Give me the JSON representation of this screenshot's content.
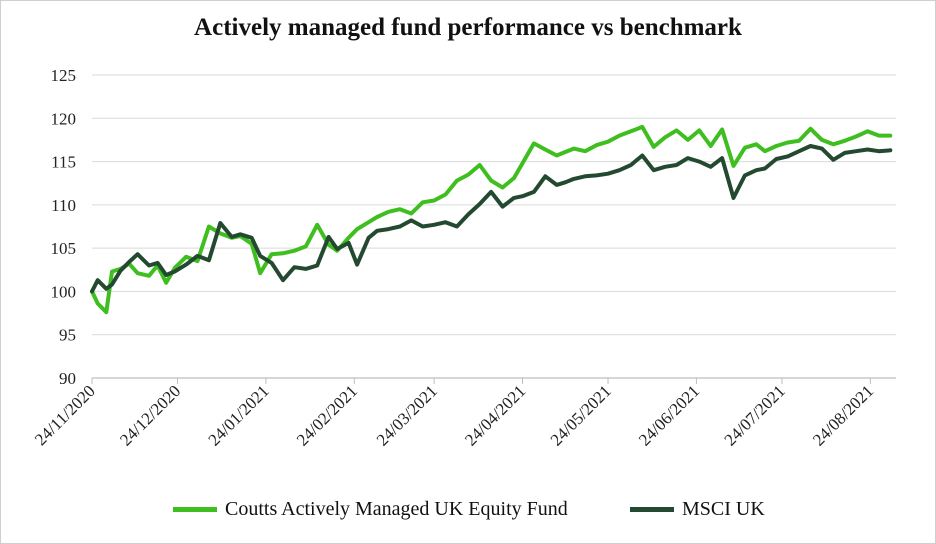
{
  "chart_data": {
    "type": "line",
    "title": "Actively managed fund performance vs benchmark",
    "xlabel": "",
    "ylabel": "",
    "ylim": [
      90,
      125
    ],
    "yticks": [
      "90",
      "95",
      "100",
      "105",
      "110",
      "115",
      "120",
      "125"
    ],
    "xticks": [
      "24/11/2020",
      "24/12/2020",
      "24/01/2021",
      "24/02/2021",
      "24/03/2021",
      "24/04/2021",
      "24/05/2021",
      "24/06/2021",
      "24/07/2021",
      "24/08/2021"
    ],
    "grid": "horizontal",
    "legend_position": "bottom",
    "series": [
      {
        "name": "Coutts Actively Managed UK Equity Fund",
        "color": "#3fbf1f",
        "x": [
          "2020-11-24",
          "2020-11-26",
          "2020-11-29",
          "2020-12-01",
          "2020-12-04",
          "2020-12-07",
          "2020-12-10",
          "2020-12-14",
          "2020-12-17",
          "2020-12-20",
          "2020-12-23",
          "2020-12-27",
          "2020-12-31",
          "2021-01-04",
          "2021-01-08",
          "2021-01-12",
          "2021-01-15",
          "2021-01-19",
          "2021-01-22",
          "2021-01-26",
          "2021-01-30",
          "2021-02-03",
          "2021-02-07",
          "2021-02-11",
          "2021-02-15",
          "2021-02-18",
          "2021-02-22",
          "2021-02-25",
          "2021-03-01",
          "2021-03-04",
          "2021-03-08",
          "2021-03-12",
          "2021-03-16",
          "2021-03-20",
          "2021-03-24",
          "2021-03-28",
          "2021-04-01",
          "2021-04-05",
          "2021-04-09",
          "2021-04-13",
          "2021-04-17",
          "2021-04-21",
          "2021-04-24",
          "2021-04-28",
          "2021-05-02",
          "2021-05-06",
          "2021-05-09",
          "2021-05-12",
          "2021-05-16",
          "2021-05-20",
          "2021-05-24",
          "2021-05-28",
          "2021-06-01",
          "2021-06-05",
          "2021-06-09",
          "2021-06-13",
          "2021-06-17",
          "2021-06-21",
          "2021-06-25",
          "2021-06-29",
          "2021-07-03",
          "2021-07-07",
          "2021-07-11",
          "2021-07-15",
          "2021-07-18",
          "2021-07-22",
          "2021-07-26",
          "2021-07-30",
          "2021-08-03",
          "2021-08-07",
          "2021-08-11",
          "2021-08-15",
          "2021-08-19",
          "2021-08-23",
          "2021-08-27",
          "2021-08-31"
        ],
        "values": [
          100.0,
          98.6,
          97.6,
          102.3,
          102.6,
          103.2,
          102.1,
          101.8,
          103.0,
          101.0,
          102.7,
          104.0,
          103.5,
          107.5,
          106.7,
          106.2,
          106.4,
          105.5,
          102.1,
          104.3,
          104.4,
          104.7,
          105.2,
          107.7,
          105.4,
          104.7,
          106.2,
          107.2,
          108.0,
          108.6,
          109.2,
          109.5,
          109.0,
          110.3,
          110.5,
          111.2,
          112.8,
          113.5,
          114.6,
          112.8,
          112.0,
          113.1,
          114.8,
          117.1,
          116.4,
          115.7,
          116.1,
          116.5,
          116.2,
          116.9,
          117.3,
          118.0,
          118.5,
          119.0,
          116.7,
          117.8,
          118.6,
          117.5,
          118.6,
          116.8,
          118.7,
          114.5,
          116.6,
          117.0,
          116.2,
          116.8,
          117.2,
          117.4,
          118.8,
          117.5,
          117.0,
          117.4,
          117.9,
          118.5,
          118.0,
          118.0
        ]
      },
      {
        "name": "MSCI UK",
        "color": "#234a30",
        "x": [
          "2020-11-24",
          "2020-11-26",
          "2020-11-29",
          "2020-12-01",
          "2020-12-04",
          "2020-12-07",
          "2020-12-10",
          "2020-12-14",
          "2020-12-17",
          "2020-12-20",
          "2020-12-23",
          "2020-12-27",
          "2020-12-31",
          "2021-01-04",
          "2021-01-08",
          "2021-01-12",
          "2021-01-15",
          "2021-01-19",
          "2021-01-22",
          "2021-01-26",
          "2021-01-30",
          "2021-02-03",
          "2021-02-07",
          "2021-02-11",
          "2021-02-15",
          "2021-02-18",
          "2021-02-22",
          "2021-02-25",
          "2021-03-01",
          "2021-03-04",
          "2021-03-08",
          "2021-03-12",
          "2021-03-16",
          "2021-03-20",
          "2021-03-24",
          "2021-03-28",
          "2021-04-01",
          "2021-04-05",
          "2021-04-09",
          "2021-04-13",
          "2021-04-17",
          "2021-04-21",
          "2021-04-24",
          "2021-04-28",
          "2021-05-02",
          "2021-05-06",
          "2021-05-09",
          "2021-05-12",
          "2021-05-16",
          "2021-05-20",
          "2021-05-24",
          "2021-05-28",
          "2021-06-01",
          "2021-06-05",
          "2021-06-09",
          "2021-06-13",
          "2021-06-17",
          "2021-06-21",
          "2021-06-25",
          "2021-06-29",
          "2021-07-03",
          "2021-07-07",
          "2021-07-11",
          "2021-07-15",
          "2021-07-18",
          "2021-07-22",
          "2021-07-26",
          "2021-07-30",
          "2021-08-03",
          "2021-08-07",
          "2021-08-11",
          "2021-08-15",
          "2021-08-19",
          "2021-08-23",
          "2021-08-27",
          "2021-08-31"
        ],
        "values": [
          100.0,
          101.3,
          100.3,
          100.8,
          102.4,
          103.4,
          104.3,
          103.0,
          103.3,
          101.9,
          102.3,
          103.1,
          104.1,
          103.6,
          107.9,
          106.3,
          106.6,
          106.2,
          104.1,
          103.3,
          101.3,
          102.8,
          102.6,
          103.0,
          106.3,
          104.9,
          105.6,
          103.1,
          106.2,
          107.0,
          107.2,
          107.5,
          108.2,
          107.5,
          107.7,
          108.0,
          107.5,
          108.9,
          110.1,
          111.5,
          109.8,
          110.8,
          111.0,
          111.5,
          113.3,
          112.3,
          112.6,
          113.0,
          113.3,
          113.4,
          113.6,
          114.0,
          114.6,
          115.7,
          114.0,
          114.4,
          114.6,
          115.4,
          115.0,
          114.4,
          115.4,
          110.8,
          113.4,
          114.0,
          114.2,
          115.3,
          115.6,
          116.2,
          116.8,
          116.5,
          115.2,
          116.0,
          116.2,
          116.4,
          116.2,
          116.3
        ]
      }
    ]
  }
}
